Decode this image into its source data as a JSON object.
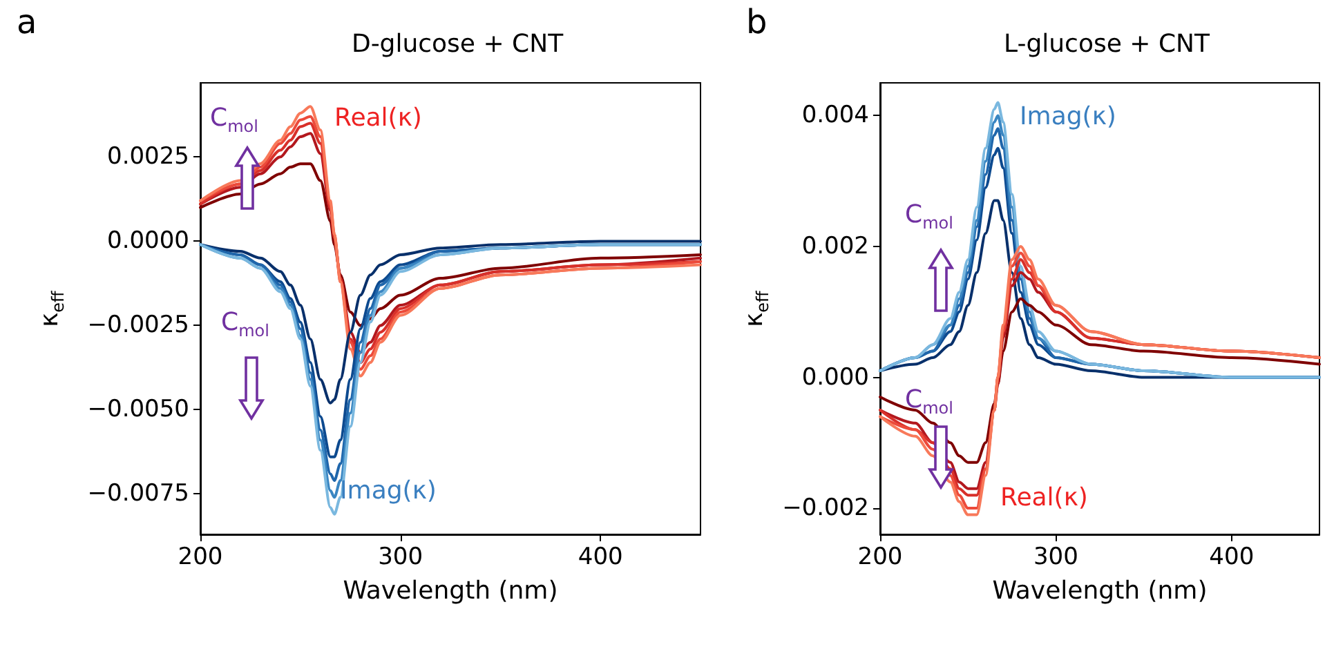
{
  "chart_data": [
    {
      "type": "line",
      "title": "D-glucose + CNT",
      "xlabel": "Wavelength (nm)",
      "ylabel": "κ$_{eff}$",
      "marker": "none",
      "line_style": "solid",
      "xlim": [
        200,
        450
      ],
      "xticks": [
        200,
        300,
        400
      ],
      "ylim": [
        -0.0087,
        0.0047
      ],
      "yticks": [
        {
          "value": -0.0075,
          "label": "−0.0075"
        },
        {
          "value": -0.005,
          "label": "−0.0050"
        },
        {
          "value": -0.0025,
          "label": "−0.0025"
        },
        {
          "value": 0,
          "label": "0.0000"
        },
        {
          "value": 0.0025,
          "label": "0.0025"
        }
      ],
      "annotations": [
        "a",
        "Real(κ)",
        "Imag(κ)",
        "C$_{mol}$",
        "C$_{mol}$"
      ],
      "x": [
        200,
        220,
        230,
        240,
        245,
        250,
        255,
        260,
        265,
        267,
        270,
        275,
        280,
        285,
        290,
        300,
        320,
        350,
        400,
        450
      ],
      "series": [
        {
          "color": "#7f0000",
          "values": [
            0.001,
            0.0014,
            0.0017,
            0.002,
            0.0022,
            0.0023,
            0.0023,
            0.0018,
            0.0006,
            -0.0001,
            -0.001,
            -0.0021,
            -0.0025,
            -0.0023,
            -0.002,
            -0.0016,
            -0.0011,
            -0.0008,
            -0.0005,
            -0.0004
          ]
        },
        {
          "color": "#b3181e",
          "values": [
            0.0011,
            0.0016,
            0.002,
            0.0025,
            0.0028,
            0.0031,
            0.0032,
            0.0026,
            0.0009,
            0.0001,
            -0.0011,
            -0.0027,
            -0.0033,
            -0.003,
            -0.0025,
            -0.0019,
            -0.0013,
            -0.0009,
            -0.0007,
            -0.0005
          ]
        },
        {
          "color": "#d8302a",
          "values": [
            0.0011,
            0.0017,
            0.0021,
            0.0027,
            0.003,
            0.0034,
            0.0035,
            0.0029,
            0.001,
            0.0001,
            -0.0011,
            -0.0029,
            -0.0036,
            -0.0032,
            -0.0027,
            -0.002,
            -0.0013,
            -0.0009,
            -0.0007,
            -0.0006
          ]
        },
        {
          "color": "#ec4a3a",
          "values": [
            0.0012,
            0.0017,
            0.0022,
            0.0029,
            0.0032,
            0.0036,
            0.0037,
            0.0031,
            0.0011,
            0.0002,
            -0.0012,
            -0.003,
            -0.0038,
            -0.0034,
            -0.0029,
            -0.0021,
            -0.0014,
            -0.001,
            -0.0008,
            -0.0006
          ]
        },
        {
          "color": "#f8795a",
          "values": [
            0.0012,
            0.0018,
            0.0023,
            0.003,
            0.0034,
            0.0038,
            0.004,
            0.0033,
            0.0012,
            0.0002,
            -0.0012,
            -0.0032,
            -0.004,
            -0.0036,
            -0.003,
            -0.0022,
            -0.0014,
            -0.001,
            -0.0008,
            -0.0007
          ]
        },
        {
          "color": "#08306b",
          "values": [
            -0.0001,
            -0.0003,
            -0.0005,
            -0.0009,
            -0.0013,
            -0.0019,
            -0.0029,
            -0.0041,
            -0.0048,
            -0.0047,
            -0.0041,
            -0.0027,
            -0.0016,
            -0.001,
            -0.0007,
            -0.0004,
            -0.0002,
            -0.0001,
            0,
            0
          ]
        },
        {
          "color": "#0d4a8f",
          "values": [
            -0.0001,
            -0.0004,
            -0.0007,
            -0.0012,
            -0.0017,
            -0.0024,
            -0.0036,
            -0.0052,
            -0.0064,
            -0.0064,
            -0.0059,
            -0.0041,
            -0.0026,
            -0.0017,
            -0.0012,
            -0.0007,
            -0.0003,
            -0.0002,
            -0.0001,
            -0.0001
          ]
        },
        {
          "color": "#1f66ab",
          "values": [
            -0.0001,
            -0.0004,
            -0.0007,
            -0.0013,
            -0.0018,
            -0.0026,
            -0.0039,
            -0.0056,
            -0.0069,
            -0.0071,
            -0.0066,
            -0.0047,
            -0.003,
            -0.002,
            -0.0013,
            -0.0008,
            -0.0003,
            -0.0002,
            -0.0001,
            -0.0001
          ]
        },
        {
          "color": "#3a86c2",
          "values": [
            -0.0001,
            -0.0005,
            -0.0008,
            -0.0014,
            -0.0019,
            -0.0028,
            -0.0041,
            -0.0059,
            -0.0074,
            -0.0076,
            -0.0071,
            -0.0051,
            -0.0033,
            -0.0022,
            -0.0015,
            -0.0008,
            -0.0004,
            -0.0002,
            -0.0001,
            -0.0001
          ]
        },
        {
          "color": "#7ab8df",
          "values": [
            -0.0001,
            -0.0005,
            -0.0008,
            -0.0015,
            -0.002,
            -0.0029,
            -0.0043,
            -0.0062,
            -0.0079,
            -0.0081,
            -0.0076,
            -0.0055,
            -0.0036,
            -0.0024,
            -0.0016,
            -0.0009,
            -0.0004,
            -0.0002,
            -0.0001,
            -0.0001
          ]
        }
      ]
    },
    {
      "type": "line",
      "title": "L-glucose + CNT",
      "xlabel": "Wavelength (nm)",
      "ylabel": "κ$_{eff}$",
      "marker": "none",
      "line_style": "solid",
      "xlim": [
        200,
        450
      ],
      "xticks": [
        200,
        300,
        400
      ],
      "ylim": [
        -0.0024,
        0.0045
      ],
      "yticks": [
        {
          "value": -0.002,
          "label": "−0.002"
        },
        {
          "value": 0,
          "label": "0.000"
        },
        {
          "value": 0.002,
          "label": "0.002"
        },
        {
          "value": 0.004,
          "label": "0.004"
        }
      ],
      "annotations": [
        "b",
        "Imag(κ)",
        "Real(κ)",
        "C$_{mol}$",
        "C$_{mol}$"
      ],
      "x": [
        200,
        220,
        230,
        240,
        245,
        250,
        255,
        260,
        265,
        267,
        270,
        275,
        280,
        285,
        290,
        300,
        320,
        350,
        400,
        450
      ],
      "series": [
        {
          "color": "#08306b",
          "values": [
            0.0001,
            0.0002,
            0.0003,
            0.0005,
            0.0007,
            0.0011,
            0.0016,
            0.0022,
            0.0027,
            0.0027,
            0.0024,
            0.0016,
            0.0009,
            0.0005,
            0.0003,
            0.0002,
            0.0001,
            0,
            0,
            0
          ]
        },
        {
          "color": "#0d4a8f",
          "values": [
            0.0001,
            0.0003,
            0.0004,
            0.0007,
            0.001,
            0.0015,
            0.0021,
            0.0029,
            0.0034,
            0.0035,
            0.0032,
            0.0022,
            0.0013,
            0.0008,
            0.0005,
            0.0003,
            0.0002,
            0.0001,
            0,
            0
          ]
        },
        {
          "color": "#1f66ab",
          "values": [
            0.0001,
            0.0003,
            0.0004,
            0.0008,
            0.0011,
            0.0016,
            0.0023,
            0.0031,
            0.0037,
            0.0038,
            0.0035,
            0.0024,
            0.0015,
            0.0009,
            0.0006,
            0.0003,
            0.0002,
            0.0001,
            0,
            0
          ]
        },
        {
          "color": "#3a86c2",
          "values": [
            0.0001,
            0.0003,
            0.0005,
            0.0008,
            0.0012,
            0.0017,
            0.0024,
            0.0033,
            0.0039,
            0.004,
            0.0037,
            0.0026,
            0.0016,
            0.001,
            0.0006,
            0.0004,
            0.0002,
            0.0001,
            0,
            0
          ]
        },
        {
          "color": "#7ab8df",
          "values": [
            0.0001,
            0.0003,
            0.0005,
            0.0009,
            0.0013,
            0.0018,
            0.0026,
            0.0035,
            0.0041,
            0.0042,
            0.0039,
            0.0028,
            0.0017,
            0.0011,
            0.0007,
            0.0004,
            0.0002,
            0.0001,
            0,
            0
          ]
        },
        {
          "color": "#7f0000",
          "values": [
            -0.0003,
            -0.0005,
            -0.0007,
            -0.001,
            -0.0012,
            -0.0013,
            -0.0013,
            -0.001,
            -0.0004,
            -0.0001,
            0.0004,
            0.001,
            0.0012,
            0.0011,
            0.001,
            0.0008,
            0.0005,
            0.0004,
            0.0003,
            0.0002
          ]
        },
        {
          "color": "#b3181e",
          "values": [
            -0.0005,
            -0.0007,
            -0.001,
            -0.0013,
            -0.0016,
            -0.0017,
            -0.0017,
            -0.0013,
            -0.0005,
            -0.0001,
            0.0006,
            0.0014,
            0.0016,
            0.0015,
            0.0013,
            0.001,
            0.0006,
            0.0005,
            0.0004,
            0.0003
          ]
        },
        {
          "color": "#d8302a",
          "values": [
            -0.0005,
            -0.0008,
            -0.001,
            -0.0014,
            -0.0017,
            -0.0018,
            -0.0018,
            -0.0014,
            -0.0005,
            0,
            0.0007,
            0.0015,
            0.0018,
            0.0016,
            0.0014,
            0.001,
            0.0006,
            0.0005,
            0.0004,
            0.0003
          ]
        },
        {
          "color": "#ec4a3a",
          "values": [
            -0.0006,
            -0.0008,
            -0.0011,
            -0.0015,
            -0.0018,
            -0.002,
            -0.002,
            -0.0014,
            -0.0005,
            0,
            0.0007,
            0.0017,
            0.0019,
            0.0017,
            0.0014,
            0.0011,
            0.0007,
            0.0005,
            0.0004,
            0.0003
          ]
        },
        {
          "color": "#f8795a",
          "values": [
            -0.0006,
            -0.0009,
            -0.0012,
            -0.0016,
            -0.0019,
            -0.0021,
            -0.0021,
            -0.0015,
            -0.0005,
            0,
            0.0008,
            0.0018,
            0.002,
            0.0018,
            0.0015,
            0.0011,
            0.0007,
            0.0005,
            0.0004,
            0.0003
          ]
        }
      ]
    }
  ]
}
